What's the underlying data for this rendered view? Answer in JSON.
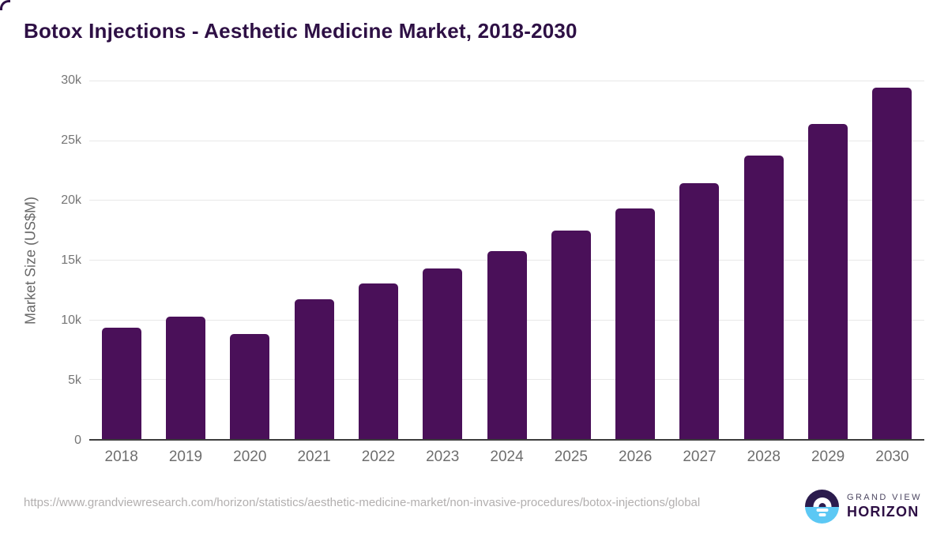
{
  "page": {
    "title": "Botox Injections - Aesthetic Medicine Market, 2018-2030"
  },
  "chart_data": {
    "type": "bar",
    "title": "Botox Injections - Aesthetic Medicine Market, 2018-2030",
    "categories": [
      "2018",
      "2019",
      "2020",
      "2021",
      "2022",
      "2023",
      "2024",
      "2025",
      "2026",
      "2027",
      "2028",
      "2029",
      "2030"
    ],
    "values": [
      9300,
      10250,
      8800,
      11700,
      13000,
      14250,
      15750,
      17450,
      19300,
      21400,
      23700,
      26350,
      29400
    ],
    "xlabel": "",
    "ylabel": "Market Size (US$M)",
    "ylim": [
      0,
      30000
    ],
    "yticks": [
      {
        "value": 0,
        "label": "0"
      },
      {
        "value": 5000,
        "label": "5k"
      },
      {
        "value": 10000,
        "label": "10k"
      },
      {
        "value": 15000,
        "label": "15k"
      },
      {
        "value": 20000,
        "label": "20k"
      },
      {
        "value": 25000,
        "label": "25k"
      },
      {
        "value": 30000,
        "label": "30k"
      }
    ],
    "bar_color": "#4a1059",
    "grid": true,
    "legend_position": "none"
  },
  "footer": {
    "source_url": "https://www.grandviewresearch.com/horizon/statistics/aesthetic-medicine-market/non-invasive-procedures/botox-injections/global",
    "logo": {
      "line1": "GRAND VIEW",
      "line2": "HORIZON"
    }
  },
  "colors": {
    "bar": "#4a1059",
    "title": "#2e1045",
    "axis_text": "#6f6f6f",
    "gridline": "#e8e8e8",
    "axis_line": "#3d3d3d",
    "source_text": "#b2afaf",
    "logo_dark": "#2b1b4d",
    "logo_blue": "#5cc8f4"
  }
}
